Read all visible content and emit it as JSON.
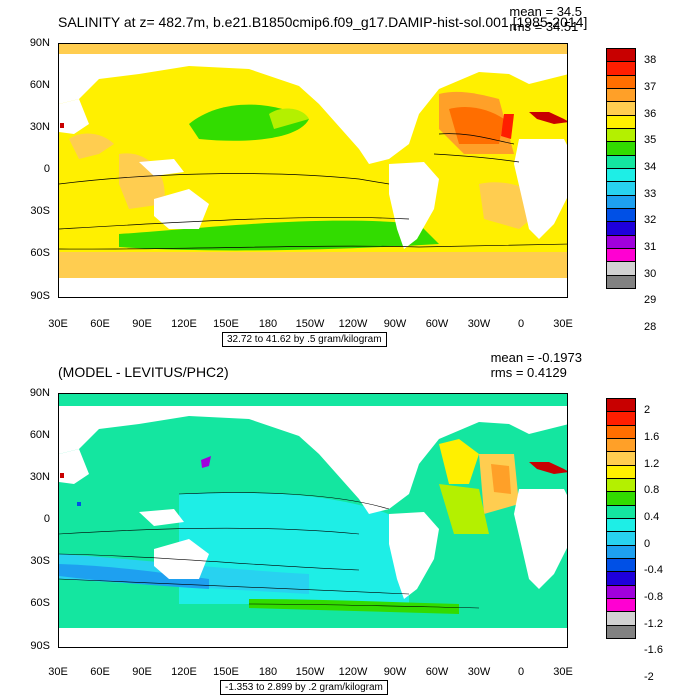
{
  "top_panel": {
    "title": "SALINITY at z= 482.7m, b.e21.B1850cmip6.f09_g17.DAMIP-hist-sol.001 [1985-2014]",
    "mean": "mean = 34.5",
    "rms": "rms = 34.51",
    "contour_info": "32.72 to 41.62 by .5 gram/kilogram",
    "colorbar_labels": [
      "38",
      "37",
      "36",
      "35",
      "34",
      "33",
      "32",
      "31",
      "30",
      "29",
      "28"
    ],
    "colorbar_colors": [
      "#c80000",
      "#ff1e00",
      "#ff6e00",
      "#ffa028",
      "#ffcd50",
      "#fff000",
      "#b4f000",
      "#32dc00",
      "#14e6a0",
      "#1eeee6",
      "#28d2f0",
      "#1ea0f0",
      "#0050e6",
      "#1e00dc",
      "#a000dc",
      "#ff00d2",
      "#d2d2d2",
      "#828282"
    ]
  },
  "bottom_panel": {
    "title": "(MODEL - LEVITUS/PHC2)",
    "mean": "mean = -0.1973",
    "rms": "rms = 0.4129",
    "contour_info": "-1.353 to 2.899 by .2 gram/kilogram",
    "colorbar_labels": [
      "2",
      "1.6",
      "1.2",
      "0.8",
      "0.4",
      "0",
      "-0.4",
      "-0.8",
      "-1.2",
      "-1.6",
      "-2"
    ],
    "colorbar_colors": [
      "#c80000",
      "#ff1e00",
      "#ff6e00",
      "#ffa028",
      "#ffcd50",
      "#fff000",
      "#b4f000",
      "#32dc00",
      "#14e6a0",
      "#1eeee6",
      "#28d2f0",
      "#1ea0f0",
      "#0050e6",
      "#1e00dc",
      "#a000dc",
      "#ff00d2",
      "#d2d2d2",
      "#828282"
    ]
  },
  "lat_labels": [
    "90N",
    "60N",
    "30N",
    "0",
    "30S",
    "60S",
    "90S"
  ],
  "lon_labels": [
    "30E",
    "60E",
    "90E",
    "120E",
    "150E",
    "180",
    "150W",
    "120W",
    "90W",
    "60W",
    "30W",
    "0",
    "30E"
  ]
}
